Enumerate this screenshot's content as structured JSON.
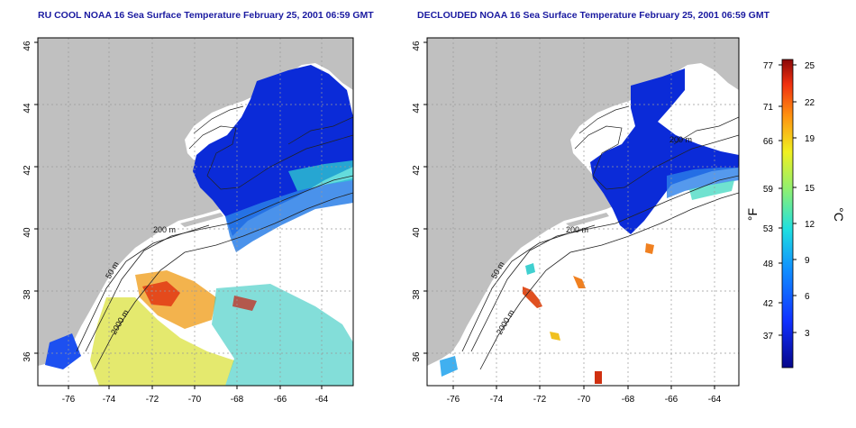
{
  "titles": {
    "left": "RU COOL NOAA 16 Sea Surface Temperature February 25, 2001 06:59 GMT",
    "right": "DECLOUDED NOAA 16 Sea Surface Temperature February 25, 2001 06:59 GMT"
  },
  "axes": {
    "lat_ticks": [
      "36",
      "38",
      "40",
      "42",
      "44",
      "46"
    ],
    "lon_ticks": [
      "-76",
      "-74",
      "-72",
      "-70",
      "-68",
      "-66",
      "-64"
    ]
  },
  "contours": {
    "label_200": "200 m",
    "label_50": "50 m",
    "label_2000": "2000 m"
  },
  "colorbar": {
    "fahrenheit_label": "°F",
    "celsius_label": "°C",
    "fahrenheit_ticks": [
      "77",
      "71",
      "66",
      "59",
      "53",
      "48",
      "42",
      "37"
    ],
    "celsius_ticks": [
      "25",
      "22",
      "19",
      "15",
      "12",
      "9",
      "6",
      "3"
    ]
  },
  "colors": {
    "land": "#c0c0c0",
    "cold": "#0b2bd8",
    "title": "#1a1aa0"
  }
}
